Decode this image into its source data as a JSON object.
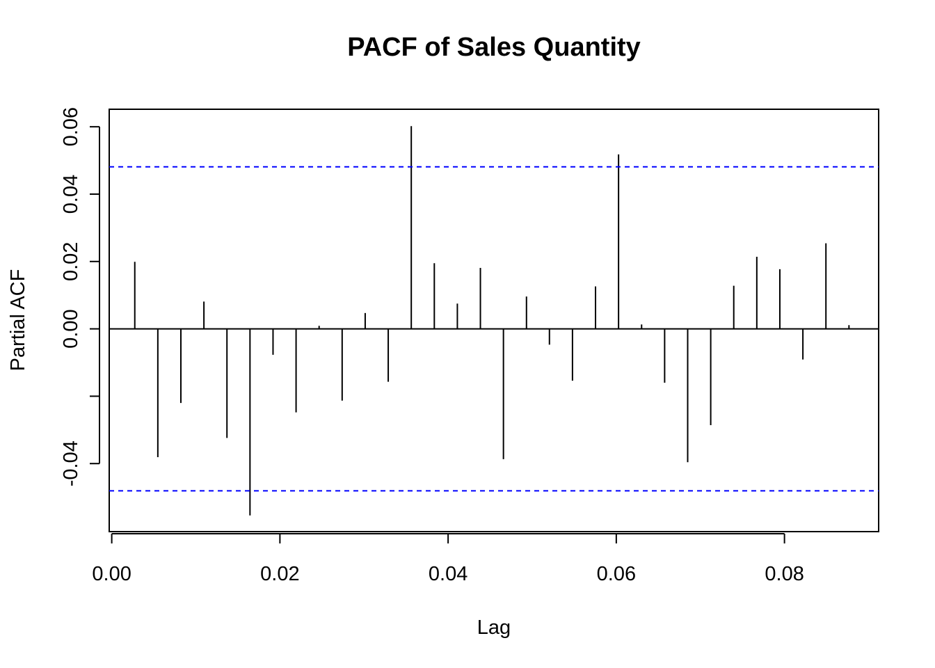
{
  "chart_data": {
    "type": "bar",
    "title": "PACF of Sales Quantity",
    "xlabel": "Lag",
    "ylabel": "Partial ACF",
    "xlim": [
      -0.0003,
      0.0912
    ],
    "ylim": [
      -0.0602,
      0.0652
    ],
    "x_ticks": [
      {
        "value": 0.0,
        "label": "0.00"
      },
      {
        "value": 0.02,
        "label": "0.02"
      },
      {
        "value": 0.04,
        "label": "0.04"
      },
      {
        "value": 0.06,
        "label": "0.06"
      },
      {
        "value": 0.08,
        "label": "0.08"
      }
    ],
    "y_ticks": [
      {
        "value": -0.04,
        "label": "-0.04"
      },
      {
        "value": -0.02,
        "label": ""
      },
      {
        "value": 0.0,
        "label": "0.00"
      },
      {
        "value": 0.02,
        "label": "0.02"
      },
      {
        "value": 0.04,
        "label": "0.04"
      },
      {
        "value": 0.06,
        "label": "0.06"
      }
    ],
    "confidence_bounds": [
      0.0481,
      -0.0481
    ],
    "confidence_color": "#0000ff",
    "bar_color": "#000000",
    "grid": false,
    "x": [
      0.00274,
      0.00548,
      0.00822,
      0.01096,
      0.0137,
      0.01644,
      0.01918,
      0.02192,
      0.02466,
      0.0274,
      0.03014,
      0.03288,
      0.03562,
      0.03836,
      0.0411,
      0.04384,
      0.04658,
      0.04932,
      0.05205,
      0.05479,
      0.05753,
      0.06027,
      0.06301,
      0.06575,
      0.06849,
      0.07123,
      0.07397,
      0.07671,
      0.07945,
      0.08219,
      0.08493,
      0.08767
    ],
    "values": [
      0.0199,
      -0.0381,
      -0.022,
      0.0081,
      -0.0324,
      -0.0554,
      -0.0077,
      -0.0248,
      0.0009,
      -0.0213,
      0.0047,
      -0.0157,
      0.0602,
      0.0195,
      0.0075,
      0.0181,
      -0.0387,
      0.0096,
      -0.0047,
      -0.0154,
      0.0126,
      0.0518,
      0.0013,
      -0.016,
      -0.0396,
      -0.0286,
      0.0128,
      0.0214,
      0.0177,
      -0.0091,
      0.0254,
      0.0011
    ]
  }
}
